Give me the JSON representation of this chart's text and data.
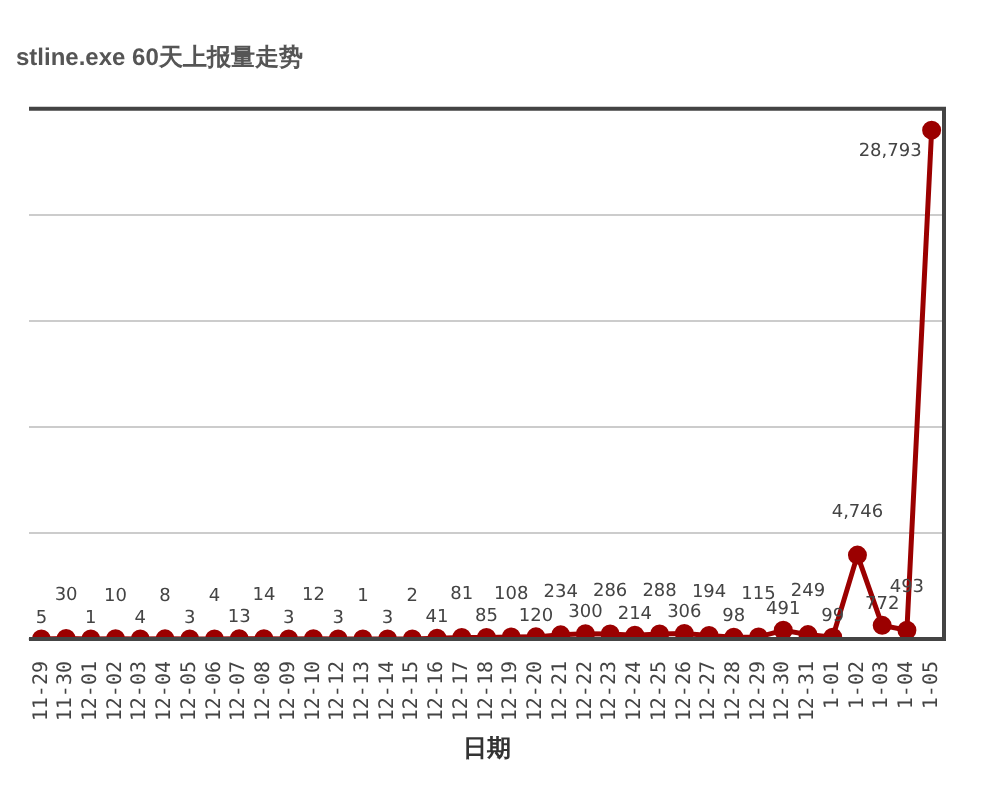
{
  "chart_data": {
    "type": "line",
    "title": "stline.exe 60天上报量走势",
    "xlabel": "日期",
    "categories": [
      "11-29",
      "11-30",
      "12-01",
      "12-02",
      "12-03",
      "12-04",
      "12-05",
      "12-06",
      "12-07",
      "12-08",
      "12-09",
      "12-10",
      "12-12",
      "12-13",
      "12-14",
      "12-15",
      "12-16",
      "12-17",
      "12-18",
      "12-19",
      "12-20",
      "12-21",
      "12-22",
      "12-23",
      "12-24",
      "12-25",
      "12-26",
      "12-27",
      "12-28",
      "12-29",
      "12-30",
      "12-31",
      "1-01",
      "1-02",
      "1-03",
      "1-04",
      "1-05"
    ],
    "series": [
      {
        "color": "#9b0000",
        "values": [
          5,
          30,
          1,
          10,
          4,
          8,
          3,
          4,
          13,
          14,
          3,
          12,
          3,
          1,
          3,
          2,
          41,
          81,
          85,
          108,
          120,
          234,
          300,
          286,
          214,
          288,
          306,
          194,
          98,
          115,
          491,
          249,
          99,
          4746,
          772,
          493,
          28793
        ],
        "value_labels": [
          "5",
          "30",
          "1",
          "10",
          "4",
          "8",
          "3",
          "4",
          "13",
          "14",
          "3",
          "12",
          "3",
          "1",
          "3",
          "2",
          "41",
          "81",
          "85",
          "108",
          "120",
          "234",
          "300",
          "286",
          "214",
          "288",
          "306",
          "194",
          "98",
          "115",
          "491",
          "249",
          "99",
          "4,746",
          "772",
          "493",
          "28,793"
        ]
      }
    ],
    "ylim": [
      0,
      30000
    ],
    "yticks": [
      {
        "value": 0,
        "label": null
      },
      {
        "value": 6000,
        "label": null
      },
      {
        "value": 12000,
        "label": null
      },
      {
        "value": 18000,
        "label": null
      },
      {
        "value": 24000,
        "label": null
      },
      {
        "value": 30000,
        "label": null
      }
    ],
    "tick_labels": "x",
    "grid": "y",
    "marker": "circle",
    "line_style": "solid",
    "legend": false
  }
}
